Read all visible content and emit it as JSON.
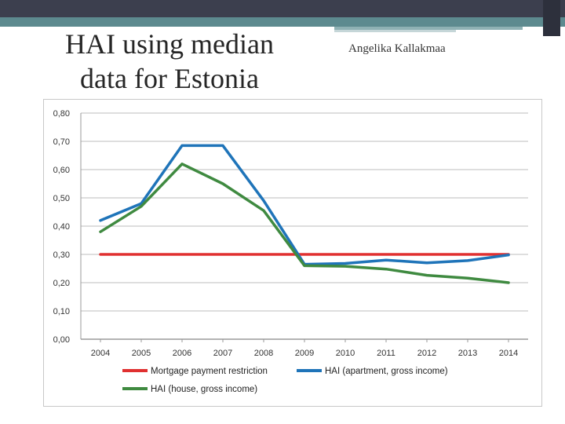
{
  "slide": {
    "title_line1": "HAI using median",
    "title_line2": "data for Estonia",
    "author": "Angelika Kallakmaa"
  },
  "theme": {
    "band_dark": "#3c3f4e",
    "band_teal": "#5d8a8f"
  },
  "chart_data": {
    "type": "line",
    "title": "",
    "xlabel": "",
    "ylabel": "",
    "categories": [
      "2004",
      "2005",
      "2006",
      "2007",
      "2008",
      "2009",
      "2010",
      "2011",
      "2012",
      "2013",
      "2014"
    ],
    "y_ticks": [
      "0,00",
      "0,10",
      "0,20",
      "0,30",
      "0,40",
      "0,50",
      "0,60",
      "0,70",
      "0,80"
    ],
    "ylim": [
      0,
      0.8
    ],
    "grid": true,
    "legend_position": "bottom",
    "series": [
      {
        "name": "Mortgage payment restriction",
        "color": "#e03030",
        "values": [
          0.3,
          0.3,
          0.3,
          0.3,
          0.3,
          0.3,
          0.3,
          0.3,
          0.3,
          0.3,
          0.3
        ]
      },
      {
        "name": "HAI (apartment, gross income)",
        "color": "#1f74b9",
        "values": [
          0.42,
          0.48,
          0.685,
          0.685,
          0.49,
          0.265,
          0.268,
          0.28,
          0.27,
          0.278,
          0.298
        ]
      },
      {
        "name": "HAI (house, gross income)",
        "color": "#3f8a40",
        "values": [
          0.38,
          0.47,
          0.62,
          0.55,
          0.455,
          0.26,
          0.258,
          0.248,
          0.226,
          0.216,
          0.2
        ]
      }
    ]
  }
}
